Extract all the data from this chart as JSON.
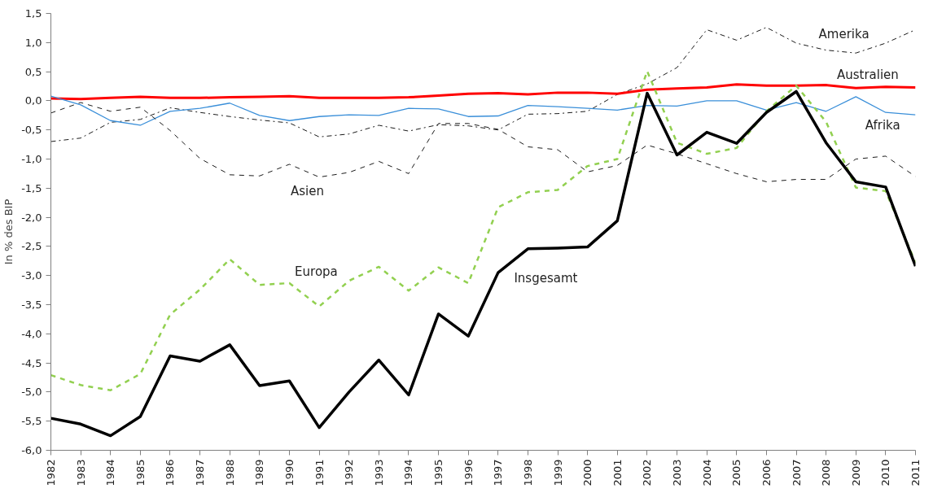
{
  "chart_data": {
    "type": "line",
    "ylabel": "In % des BIP",
    "categories": [
      "1982",
      "1983",
      "1984",
      "1985",
      "1986",
      "1987",
      "1988",
      "1989",
      "1990",
      "1991",
      "1992",
      "1993",
      "1994",
      "1995",
      "1996",
      "1997",
      "1998",
      "1999",
      "2000",
      "2001",
      "2002",
      "2003",
      "2004",
      "2005",
      "2006",
      "2007",
      "2008",
      "2009",
      "2010",
      "2011"
    ],
    "ylim": [
      -6,
      1.5
    ],
    "yticks": [
      {
        "value": -6,
        "label": "-6,0"
      },
      {
        "value": -5.5,
        "label": "-5,5"
      },
      {
        "value": -5,
        "label": "-5,0"
      },
      {
        "value": -4.5,
        "label": "-4,5"
      },
      {
        "value": -4,
        "label": "-4,0"
      },
      {
        "value": -3.5,
        "label": "-3,5"
      },
      {
        "value": -3,
        "label": "-3,0"
      },
      {
        "value": -2.5,
        "label": "-2,5"
      },
      {
        "value": -2,
        "label": "-2,0"
      },
      {
        "value": -1.5,
        "label": "-1,5"
      },
      {
        "value": -1,
        "label": "-1,0"
      },
      {
        "value": -0.5,
        "label": "-0,5"
      },
      {
        "value": 0,
        "label": "0,0"
      },
      {
        "value": 0.5,
        "label": "0,5"
      },
      {
        "value": 1,
        "label": "1,0"
      },
      {
        "value": 1.5,
        "label": "1,5"
      }
    ],
    "grid": false,
    "marker": "none",
    "series": [
      {
        "name": "Amerika",
        "color": "#1a1a1a",
        "line_style": "dashdot",
        "values": [
          -0.7,
          -0.64,
          -0.37,
          -0.32,
          -0.12,
          -0.2,
          -0.27,
          -0.33,
          -0.38,
          -0.62,
          -0.57,
          -0.42,
          -0.52,
          -0.41,
          -0.43,
          -0.5,
          -0.23,
          -0.22,
          -0.18,
          0.11,
          0.29,
          0.57,
          1.22,
          1.04,
          1.26,
          0.99,
          0.87,
          0.82,
          0.99,
          1.22
        ]
      },
      {
        "name": "Australien",
        "color": "#ff0000",
        "line_style": "solid",
        "values": [
          0.04,
          0.03,
          0.05,
          0.07,
          0.05,
          0.05,
          0.06,
          0.07,
          0.08,
          0.05,
          0.05,
          0.05,
          0.06,
          0.09,
          0.12,
          0.13,
          0.11,
          0.14,
          0.14,
          0.12,
          0.19,
          0.21,
          0.23,
          0.28,
          0.26,
          0.26,
          0.27,
          0.22,
          0.24,
          0.23
        ]
      },
      {
        "name": "Afrika",
        "color": "#3a8fd9",
        "line_style": "solid",
        "values": [
          0.08,
          -0.07,
          -0.34,
          -0.42,
          -0.18,
          -0.13,
          -0.04,
          -0.25,
          -0.34,
          -0.27,
          -0.24,
          -0.25,
          -0.13,
          -0.14,
          -0.27,
          -0.26,
          -0.08,
          -0.1,
          -0.13,
          -0.16,
          -0.08,
          -0.09,
          0.0,
          0.0,
          -0.16,
          -0.03,
          -0.18,
          0.07,
          -0.2,
          -0.24
        ]
      },
      {
        "name": "Asien",
        "color": "#1a1a1a",
        "line_style": "dashed",
        "values": [
          -0.21,
          -0.03,
          -0.18,
          -0.11,
          -0.51,
          -0.99,
          -1.27,
          -1.29,
          -1.09,
          -1.31,
          -1.23,
          -1.04,
          -1.25,
          -0.39,
          -0.39,
          -0.49,
          -0.79,
          -0.84,
          -1.22,
          -1.11,
          -0.76,
          -0.91,
          -1.08,
          -1.25,
          -1.39,
          -1.35,
          -1.35,
          -1.0,
          -0.95,
          -1.3
        ]
      },
      {
        "name": "Europa",
        "color": "#92d050",
        "line_style": "dashed",
        "values": [
          -4.71,
          -4.88,
          -4.97,
          -4.69,
          -3.67,
          -3.24,
          -2.72,
          -3.16,
          -3.13,
          -3.53,
          -3.09,
          -2.85,
          -3.26,
          -2.86,
          -3.13,
          -1.83,
          -1.57,
          -1.53,
          -1.12,
          -1.0,
          0.51,
          -0.72,
          -0.91,
          -0.81,
          -0.18,
          0.26,
          -0.36,
          -1.49,
          -1.55,
          -2.78
        ]
      },
      {
        "name": "Insgesamt",
        "color": "#000000",
        "line_style": "solid",
        "values": [
          -5.45,
          -5.55,
          -5.75,
          -5.42,
          -4.38,
          -4.47,
          -4.19,
          -4.89,
          -4.81,
          -5.61,
          -5.0,
          -4.45,
          -5.05,
          -3.66,
          -4.04,
          -2.95,
          -2.54,
          -2.53,
          -2.51,
          -2.06,
          0.13,
          -0.93,
          -0.54,
          -0.73,
          -0.2,
          0.16,
          -0.72,
          -1.39,
          -1.48,
          -2.84
        ]
      }
    ]
  }
}
